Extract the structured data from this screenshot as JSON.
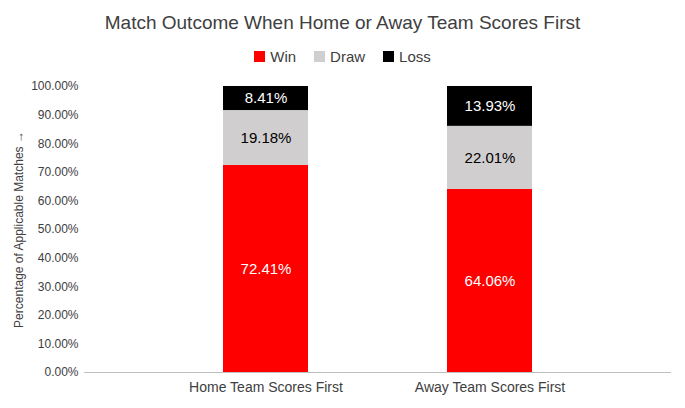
{
  "chart_data": {
    "type": "bar",
    "title": "Match Outcome When Home or Away Team Scores First",
    "categories": [
      "Home Team Scores First",
      "Away Team Scores First"
    ],
    "series": [
      {
        "name": "Win",
        "color": "#FF0000",
        "values": [
          72.41,
          64.06
        ],
        "value_labels": [
          "72.41%",
          "64.06%"
        ]
      },
      {
        "name": "Draw",
        "color": "#D0CECE",
        "values": [
          19.18,
          22.01
        ],
        "value_labels": [
          "19.18%",
          "22.01%"
        ]
      },
      {
        "name": "Loss",
        "color": "#000000",
        "values": [
          8.41,
          13.93
        ],
        "value_labels": [
          "8.41%",
          "13.93%"
        ]
      }
    ],
    "y_label": "Percentage of Applicable Matches",
    "ylim": [
      0,
      100
    ],
    "yticks": [
      {
        "value": 0,
        "label": "0.00%"
      },
      {
        "value": 10,
        "label": "10.00%"
      },
      {
        "value": 20,
        "label": "20.00%"
      },
      {
        "value": 30,
        "label": "30.00%"
      },
      {
        "value": 40,
        "label": "40.00%"
      },
      {
        "value": 50,
        "label": "50.00%"
      },
      {
        "value": 60,
        "label": "60.00%"
      },
      {
        "value": 70,
        "label": "70.00%"
      },
      {
        "value": 80,
        "label": "80.00%"
      },
      {
        "value": 90,
        "label": "90.00%"
      },
      {
        "value": 100,
        "label": "100.00%"
      }
    ],
    "stacked": true,
    "data_labels": true,
    "legend": "top",
    "grid": false
  }
}
